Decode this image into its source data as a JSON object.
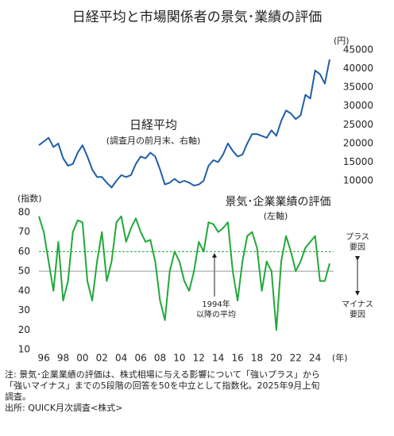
{
  "chart_data": {
    "type": "line",
    "title": "日経平均と市場関係者の景気･業績の評価",
    "x": [
      1995.5,
      1996,
      1996.5,
      1997,
      1997.5,
      1998,
      1998.5,
      1999,
      1999.5,
      2000,
      2000.5,
      2001,
      2001.5,
      2002,
      2002.5,
      2003,
      2003.5,
      2004,
      2004.5,
      2005,
      2005.5,
      2006,
      2006.5,
      2007,
      2007.5,
      2008,
      2008.5,
      2009,
      2009.5,
      2010,
      2010.5,
      2011,
      2011.5,
      2012,
      2012.5,
      2013,
      2013.5,
      2014,
      2014.5,
      2015,
      2015.5,
      2016,
      2016.5,
      2017,
      2017.5,
      2018,
      2018.5,
      2019,
      2019.5,
      2020,
      2020.5,
      2021,
      2021.5,
      2022,
      2022.5,
      2023,
      2023.5,
      2024,
      2024.5,
      2025,
      2025.5
    ],
    "series": [
      {
        "name": "日経平均",
        "axis_note": "(調査月の前月末、右軸)",
        "color": "#1f5fa8",
        "axis": "y2",
        "values": [
          19500,
          20500,
          21500,
          19000,
          20000,
          16000,
          14000,
          14500,
          17500,
          19500,
          16500,
          13000,
          11000,
          11000,
          9500,
          8200,
          10000,
          11500,
          11000,
          11500,
          14500,
          16500,
          16000,
          17500,
          16500,
          13000,
          9000,
          9500,
          10500,
          9500,
          10000,
          9500,
          8700,
          9000,
          10000,
          14000,
          15500,
          15000,
          17000,
          20000,
          18000,
          16500,
          17000,
          20000,
          22500,
          22500,
          22000,
          21500,
          23500,
          22000,
          26000,
          28800,
          28000,
          26500,
          27500,
          33000,
          32000,
          39500,
          38500,
          36000,
          42500
        ]
      },
      {
        "name": "景気･企業業績の評価",
        "axis_note": "(左軸)",
        "color": "#22a83a",
        "axis": "y",
        "values": [
          78,
          70,
          55,
          40,
          65,
          35,
          45,
          70,
          76,
          75,
          45,
          35,
          55,
          70,
          45,
          55,
          75,
          78,
          65,
          72,
          77,
          70,
          65,
          66,
          55,
          35,
          25,
          50,
          60,
          55,
          45,
          40,
          50,
          65,
          60,
          75,
          74,
          70,
          72,
          75,
          50,
          35,
          55,
          68,
          70,
          62,
          40,
          55,
          50,
          20,
          55,
          68,
          60,
          50,
          55,
          62,
          65,
          68,
          45,
          45,
          54
        ]
      }
    ],
    "xlim": [
      1995.5,
      2025.5
    ],
    "xticks": [
      {
        "value": 1996,
        "label": "96"
      },
      {
        "value": 1998,
        "label": "98"
      },
      {
        "value": 2000,
        "label": "00"
      },
      {
        "value": 2002,
        "label": "02"
      },
      {
        "value": 2004,
        "label": "04"
      },
      {
        "value": 2006,
        "label": "06"
      },
      {
        "value": 2008,
        "label": "08"
      },
      {
        "value": 2010,
        "label": "10"
      },
      {
        "value": 2012,
        "label": "12"
      },
      {
        "value": 2014,
        "label": "14"
      },
      {
        "value": 2016,
        "label": "16"
      },
      {
        "value": 2018,
        "label": "18"
      },
      {
        "value": 2020,
        "label": "20"
      },
      {
        "value": 2022,
        "label": "22"
      },
      {
        "value": 2024,
        "label": "24"
      }
    ],
    "x_unit": "(年)",
    "ylim": [
      10,
      80
    ],
    "yticks": [
      10,
      20,
      30,
      40,
      50,
      60,
      70,
      80
    ],
    "y_unit": "(指数)",
    "y2lim": [
      10000,
      45000
    ],
    "y2ticks": [
      10000,
      15000,
      20000,
      25000,
      30000,
      35000,
      40000,
      45000
    ],
    "y2_unit": "(円)",
    "neutral_line": 50,
    "average_line": {
      "value": 60,
      "label": [
        "1994年",
        "以降の平均"
      ]
    },
    "plus_label": [
      "プラス",
      "要因"
    ],
    "minus_label": [
      "マイナス",
      "要因"
    ],
    "notes": [
      "注: 景気･企業業績の評価は、株式相場に与える影響について「強いプラス」から",
      "「強いマイナス」までの5段階の回答を50を中立として指数化。2025年9月上旬",
      "調査。",
      "出所: QUICK月次調査<株式>"
    ]
  }
}
